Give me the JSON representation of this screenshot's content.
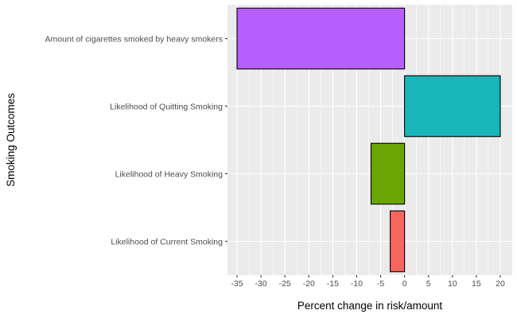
{
  "chart_data": {
    "type": "bar",
    "orientation": "horizontal",
    "categories": [
      "Amount of cigarettes smoked by heavy smokers",
      "Likelihood of Quitting Smoking",
      "Likelihood of Heavy Smoking",
      "Likelihood of Current Smoking"
    ],
    "values": [
      -35,
      20,
      -7,
      -3
    ],
    "colors": [
      "#b75eff",
      "#18b6b9",
      "#6aa603",
      "#f6655f"
    ],
    "title": "",
    "xlabel": "Percent change in risk/amount",
    "ylabel": "Smoking Outcomes",
    "xlim": [
      -37,
      22.5
    ],
    "xticks": [
      -35,
      -30,
      -25,
      -20,
      -15,
      -10,
      -5,
      0,
      5,
      10,
      15,
      20
    ],
    "xtick_labels": [
      "-35",
      "-30",
      "-25",
      "-20",
      "-15",
      "-10",
      "-5",
      "0",
      "5",
      "10",
      "15",
      "20"
    ],
    "grid": true,
    "legend": "none",
    "panel_background": "#ebebeb",
    "grid_color": "#ffffff",
    "bar_outline": "#000000"
  }
}
